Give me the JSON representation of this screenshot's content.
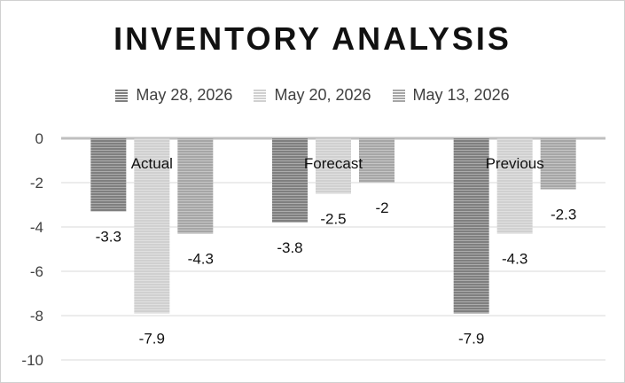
{
  "chart_data": {
    "type": "bar",
    "title": "INVENTORY ANALYSIS",
    "categories": [
      "Actual",
      "Forecast",
      "Previous"
    ],
    "series": [
      {
        "name": "May 28, 2026",
        "values": [
          -3.3,
          -3.8,
          -7.9
        ],
        "labels": [
          "-3.3",
          "-3.8",
          "-7.9"
        ],
        "color": "#7f7f7f"
      },
      {
        "name": "May 20, 2026",
        "values": [
          -7.9,
          -2.5,
          -4.3
        ],
        "labels": [
          "-7.9",
          "-2.5",
          "-4.3"
        ],
        "color": "#d0d0d0"
      },
      {
        "name": "May 13, 2026",
        "values": [
          -4.3,
          -2.0,
          -2.3
        ],
        "labels": [
          "-4.3",
          "-2",
          "-2.3"
        ],
        "color": "#a6a6a6"
      }
    ],
    "yticks": [
      0,
      -2,
      -4,
      -6,
      -8,
      -10
    ],
    "ytick_labels": [
      "0",
      "-2",
      "-4",
      "-6",
      "-8",
      "-10"
    ],
    "ylim": [
      -10,
      0
    ],
    "xlabel": "",
    "ylabel": "",
    "legend_position": "top",
    "grid": true
  }
}
